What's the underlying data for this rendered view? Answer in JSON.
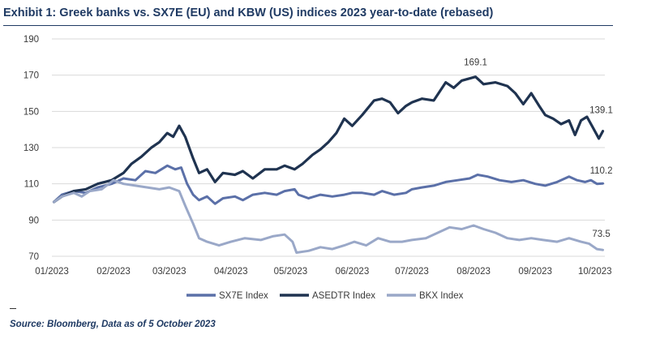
{
  "header": {
    "title": "Exhibit 1: Greek banks vs. SX7E (EU) and KBW (US) indices 2023 year-to-date (rebased)"
  },
  "footer": {
    "source": "Source: Bloomberg, Data as of 5 October 2023"
  },
  "chart_data": {
    "type": "line",
    "title": "Exhibit 1: Greek banks vs. SX7E (EU) and KBW (US) indices 2023 year-to-date (rebased)",
    "ylim": [
      70,
      190
    ],
    "yticks": [
      190,
      170,
      150,
      130,
      110,
      90,
      70
    ],
    "ytick_labels": [
      "190",
      "170",
      "150",
      "130",
      "110",
      "90",
      "70"
    ],
    "xlim": [
      "2023-01-01",
      "2023-10-06"
    ],
    "xticks": [
      "2023-01-01",
      "2023-02-01",
      "2023-03-01",
      "2023-04-01",
      "2023-05-01",
      "2023-06-01",
      "2023-07-01",
      "2023-08-01",
      "2023-09-01",
      "2023-10-01"
    ],
    "xtick_labels": [
      "01/2023",
      "02/2023",
      "03/2023",
      "04/2023",
      "05/2023",
      "06/2023",
      "07/2023",
      "08/2023",
      "09/2023",
      "10/2023"
    ],
    "grid": "horizontal",
    "legend": "bottom",
    "series": [
      {
        "name": "SX7E Index",
        "color": "#5b70a8",
        "end_label": "110.2",
        "points": [
          [
            "2023-01-02",
            100
          ],
          [
            "2023-01-06",
            104
          ],
          [
            "2023-01-12",
            106
          ],
          [
            "2023-01-18",
            105
          ],
          [
            "2023-01-24",
            108
          ],
          [
            "2023-01-31",
            110
          ],
          [
            "2023-02-06",
            113
          ],
          [
            "2023-02-12",
            112
          ],
          [
            "2023-02-17",
            117
          ],
          [
            "2023-02-22",
            116
          ],
          [
            "2023-02-28",
            120
          ],
          [
            "2023-03-04",
            118
          ],
          [
            "2023-03-07",
            119
          ],
          [
            "2023-03-10",
            110
          ],
          [
            "2023-03-13",
            104
          ],
          [
            "2023-03-16",
            101
          ],
          [
            "2023-03-20",
            103
          ],
          [
            "2023-03-24",
            99
          ],
          [
            "2023-03-28",
            102
          ],
          [
            "2023-04-03",
            103
          ],
          [
            "2023-04-07",
            101
          ],
          [
            "2023-04-12",
            104
          ],
          [
            "2023-04-18",
            105
          ],
          [
            "2023-04-24",
            104
          ],
          [
            "2023-04-28",
            106
          ],
          [
            "2023-05-03",
            107
          ],
          [
            "2023-05-05",
            104
          ],
          [
            "2023-05-10",
            102
          ],
          [
            "2023-05-16",
            104
          ],
          [
            "2023-05-22",
            103
          ],
          [
            "2023-05-28",
            104
          ],
          [
            "2023-06-01",
            105
          ],
          [
            "2023-06-06",
            105
          ],
          [
            "2023-06-12",
            104
          ],
          [
            "2023-06-16",
            106
          ],
          [
            "2023-06-22",
            104
          ],
          [
            "2023-06-28",
            105
          ],
          [
            "2023-07-01",
            107
          ],
          [
            "2023-07-06",
            108
          ],
          [
            "2023-07-12",
            109
          ],
          [
            "2023-07-18",
            111
          ],
          [
            "2023-07-24",
            112
          ],
          [
            "2023-07-30",
            113
          ],
          [
            "2023-08-03",
            115
          ],
          [
            "2023-08-08",
            114
          ],
          [
            "2023-08-14",
            112
          ],
          [
            "2023-08-20",
            111
          ],
          [
            "2023-08-26",
            112
          ],
          [
            "2023-09-01",
            110
          ],
          [
            "2023-09-06",
            109
          ],
          [
            "2023-09-12",
            111
          ],
          [
            "2023-09-18",
            114
          ],
          [
            "2023-09-22",
            112
          ],
          [
            "2023-09-26",
            111
          ],
          [
            "2023-09-29",
            112
          ],
          [
            "2023-10-02",
            110
          ],
          [
            "2023-10-05",
            110.2
          ]
        ]
      },
      {
        "name": "ASEDTR Index",
        "color": "#1f3350",
        "end_label": "139.1",
        "peak_label": "169.1",
        "peak_date": "2023-08-02",
        "points": [
          [
            "2023-01-02",
            100
          ],
          [
            "2023-01-06",
            103
          ],
          [
            "2023-01-12",
            106
          ],
          [
            "2023-01-18",
            107
          ],
          [
            "2023-01-24",
            110
          ],
          [
            "2023-01-31",
            112
          ],
          [
            "2023-02-06",
            116
          ],
          [
            "2023-02-10",
            121
          ],
          [
            "2023-02-15",
            125
          ],
          [
            "2023-02-20",
            130
          ],
          [
            "2023-02-24",
            133
          ],
          [
            "2023-02-28",
            138
          ],
          [
            "2023-03-03",
            136
          ],
          [
            "2023-03-06",
            142
          ],
          [
            "2023-03-09",
            136
          ],
          [
            "2023-03-13",
            124
          ],
          [
            "2023-03-16",
            116
          ],
          [
            "2023-03-20",
            118
          ],
          [
            "2023-03-24",
            111
          ],
          [
            "2023-03-28",
            116
          ],
          [
            "2023-04-03",
            115
          ],
          [
            "2023-04-07",
            117
          ],
          [
            "2023-04-12",
            113
          ],
          [
            "2023-04-18",
            118
          ],
          [
            "2023-04-24",
            118
          ],
          [
            "2023-04-28",
            120
          ],
          [
            "2023-05-03",
            118
          ],
          [
            "2023-05-07",
            121
          ],
          [
            "2023-05-12",
            126
          ],
          [
            "2023-05-16",
            129
          ],
          [
            "2023-05-20",
            133
          ],
          [
            "2023-05-24",
            138
          ],
          [
            "2023-05-28",
            146
          ],
          [
            "2023-06-01",
            142
          ],
          [
            "2023-06-06",
            148
          ],
          [
            "2023-06-12",
            156
          ],
          [
            "2023-06-16",
            157
          ],
          [
            "2023-06-20",
            155
          ],
          [
            "2023-06-24",
            149
          ],
          [
            "2023-06-28",
            153
          ],
          [
            "2023-07-01",
            155
          ],
          [
            "2023-07-06",
            157
          ],
          [
            "2023-07-12",
            156
          ],
          [
            "2023-07-18",
            166
          ],
          [
            "2023-07-22",
            163
          ],
          [
            "2023-07-26",
            167
          ],
          [
            "2023-08-02",
            169.1
          ],
          [
            "2023-08-06",
            165
          ],
          [
            "2023-08-12",
            166
          ],
          [
            "2023-08-18",
            164
          ],
          [
            "2023-08-22",
            160
          ],
          [
            "2023-08-26",
            154
          ],
          [
            "2023-08-30",
            160
          ],
          [
            "2023-09-03",
            153
          ],
          [
            "2023-09-06",
            148
          ],
          [
            "2023-09-10",
            146
          ],
          [
            "2023-09-14",
            143
          ],
          [
            "2023-09-18",
            145
          ],
          [
            "2023-09-21",
            137
          ],
          [
            "2023-09-24",
            145
          ],
          [
            "2023-09-27",
            147
          ],
          [
            "2023-09-30",
            141
          ],
          [
            "2023-10-03",
            135
          ],
          [
            "2023-10-05",
            139.1
          ]
        ]
      },
      {
        "name": "BKX Index",
        "color": "#9aa8c8",
        "end_label": "73.5",
        "points": [
          [
            "2023-01-02",
            100
          ],
          [
            "2023-01-06",
            103
          ],
          [
            "2023-01-12",
            105
          ],
          [
            "2023-01-16",
            103
          ],
          [
            "2023-01-20",
            106
          ],
          [
            "2023-01-26",
            107
          ],
          [
            "2023-02-01",
            112
          ],
          [
            "2023-02-06",
            110
          ],
          [
            "2023-02-12",
            109
          ],
          [
            "2023-02-18",
            108
          ],
          [
            "2023-02-24",
            107
          ],
          [
            "2023-03-01",
            108
          ],
          [
            "2023-03-06",
            106
          ],
          [
            "2023-03-09",
            98
          ],
          [
            "2023-03-13",
            88
          ],
          [
            "2023-03-16",
            80
          ],
          [
            "2023-03-20",
            78
          ],
          [
            "2023-03-26",
            76
          ],
          [
            "2023-04-01",
            78
          ],
          [
            "2023-04-08",
            80
          ],
          [
            "2023-04-16",
            79
          ],
          [
            "2023-04-22",
            81
          ],
          [
            "2023-04-28",
            82
          ],
          [
            "2023-05-02",
            78
          ],
          [
            "2023-05-04",
            72
          ],
          [
            "2023-05-10",
            73
          ],
          [
            "2023-05-16",
            75
          ],
          [
            "2023-05-22",
            74
          ],
          [
            "2023-05-28",
            76
          ],
          [
            "2023-06-02",
            78
          ],
          [
            "2023-06-08",
            76
          ],
          [
            "2023-06-14",
            80
          ],
          [
            "2023-06-20",
            78
          ],
          [
            "2023-06-26",
            78
          ],
          [
            "2023-07-01",
            79
          ],
          [
            "2023-07-08",
            80
          ],
          [
            "2023-07-14",
            83
          ],
          [
            "2023-07-20",
            86
          ],
          [
            "2023-07-26",
            85
          ],
          [
            "2023-08-01",
            87
          ],
          [
            "2023-08-06",
            85
          ],
          [
            "2023-08-12",
            83
          ],
          [
            "2023-08-18",
            80
          ],
          [
            "2023-08-24",
            79
          ],
          [
            "2023-08-30",
            80
          ],
          [
            "2023-09-05",
            79
          ],
          [
            "2023-09-12",
            78
          ],
          [
            "2023-09-18",
            80
          ],
          [
            "2023-09-24",
            78
          ],
          [
            "2023-09-28",
            77
          ],
          [
            "2023-10-02",
            74
          ],
          [
            "2023-10-05",
            73.5
          ]
        ]
      }
    ]
  }
}
